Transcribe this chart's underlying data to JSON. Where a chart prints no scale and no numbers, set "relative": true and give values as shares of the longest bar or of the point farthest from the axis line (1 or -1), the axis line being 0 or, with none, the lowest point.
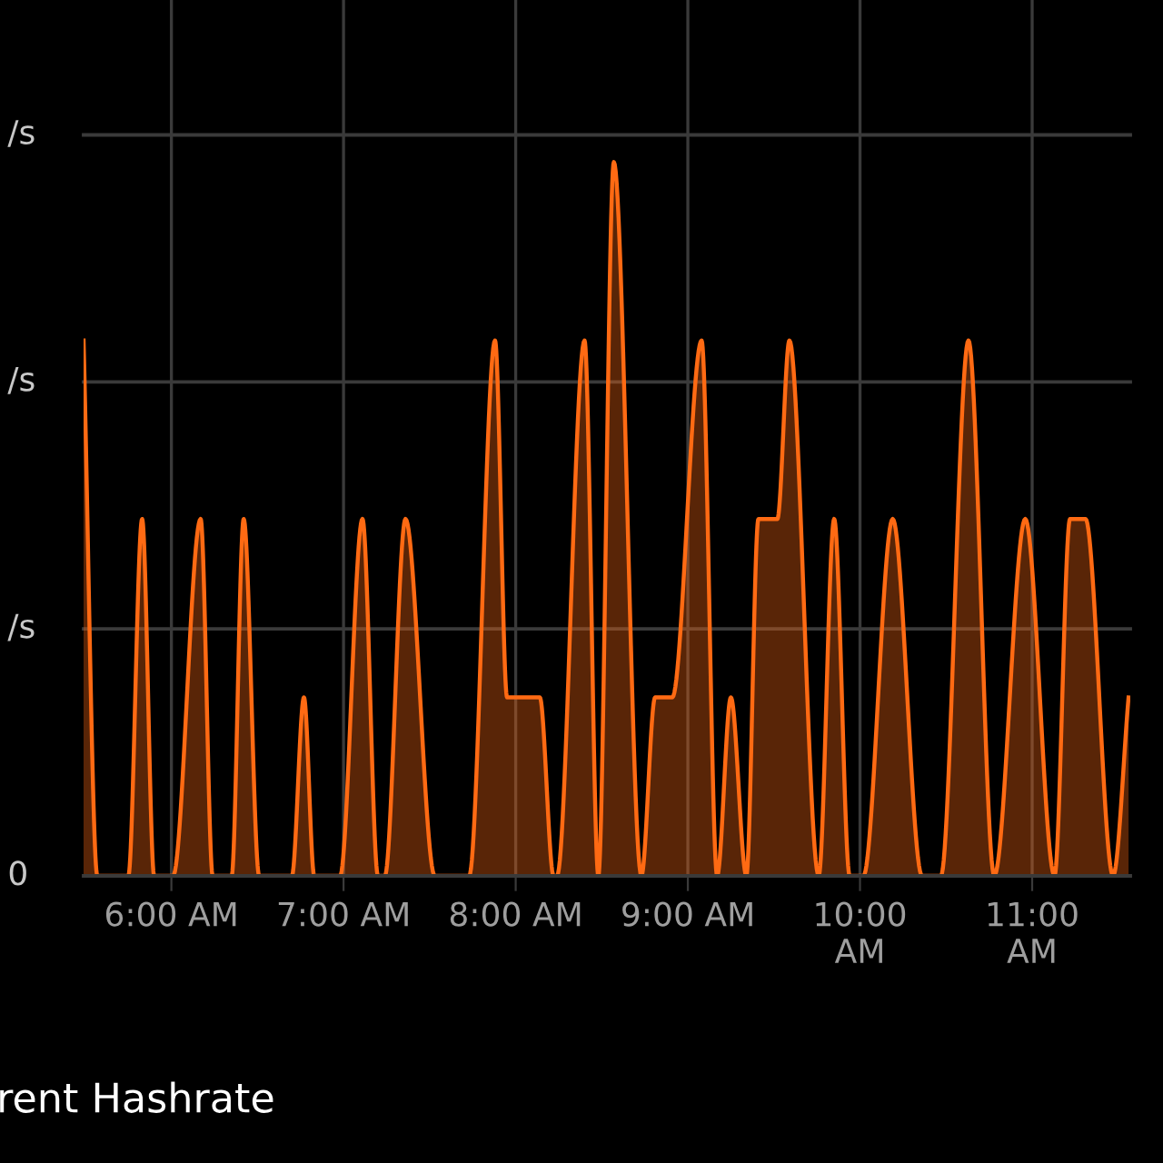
{
  "chart_data": {
    "type": "area",
    "title": "rent Hashrate",
    "relative": true,
    "x": [
      5.49,
      5.57,
      5.75,
      5.83,
      5.9,
      6.01,
      6.17,
      6.24,
      6.35,
      6.42,
      6.51,
      6.7,
      6.77,
      6.83,
      6.98,
      7.11,
      7.2,
      7.24,
      7.36,
      7.53,
      7.73,
      7.88,
      7.95,
      8.14,
      8.22,
      8.24,
      8.4,
      8.48,
      8.57,
      8.73,
      8.81,
      8.91,
      9.08,
      9.17,
      9.25,
      9.34,
      9.41,
      9.52,
      9.59,
      9.76,
      9.85,
      9.94,
      10.02,
      10.19,
      10.36,
      10.47,
      10.63,
      10.78,
      10.96,
      11.13,
      11.22,
      11.31,
      11.47,
      11.56
    ],
    "series": [
      {
        "color": "#ff6a13",
        "values": [
          0.75,
          0,
          0,
          0.5,
          0,
          0,
          0.5,
          0,
          0,
          0.5,
          0,
          0,
          0.25,
          0,
          0,
          0.5,
          0,
          0,
          0.5,
          0,
          0,
          0.75,
          0.25,
          0.25,
          0,
          0,
          0.75,
          0,
          1.0,
          0,
          0.25,
          0.25,
          0.75,
          0,
          0.25,
          0,
          0.5,
          0.5,
          0.75,
          0,
          0.5,
          0,
          0,
          0.5,
          0,
          0,
          0.75,
          0,
          0.5,
          0,
          0.5,
          0.5,
          0,
          0.25
        ]
      }
    ],
    "xlim": [
      5.49,
      11.57
    ],
    "xticks": [
      {
        "value": 6,
        "label": "6:00 AM"
      },
      {
        "value": 7,
        "label": "7:00 AM"
      },
      {
        "value": 8,
        "label": "8:00 AM"
      },
      {
        "value": 9,
        "label": "9:00 AM"
      },
      {
        "value": 10,
        "label": "10:00\nAM"
      },
      {
        "value": 11,
        "label": "11:00\nAM"
      }
    ],
    "ref_lines": [
      {
        "axis": "y",
        "value": 0,
        "label": "0",
        "color": "#3a3a3a"
      },
      {
        "axis": "y",
        "value": 0.346,
        "label": "/s",
        "color": "#3a3a3a"
      },
      {
        "axis": "y",
        "value": 0.692,
        "label": "/s",
        "color": "#3a3a3a"
      },
      {
        "axis": "y",
        "value": 1.038,
        "label": "/s",
        "color": "#3a3a3a"
      }
    ],
    "grid": "x"
  }
}
